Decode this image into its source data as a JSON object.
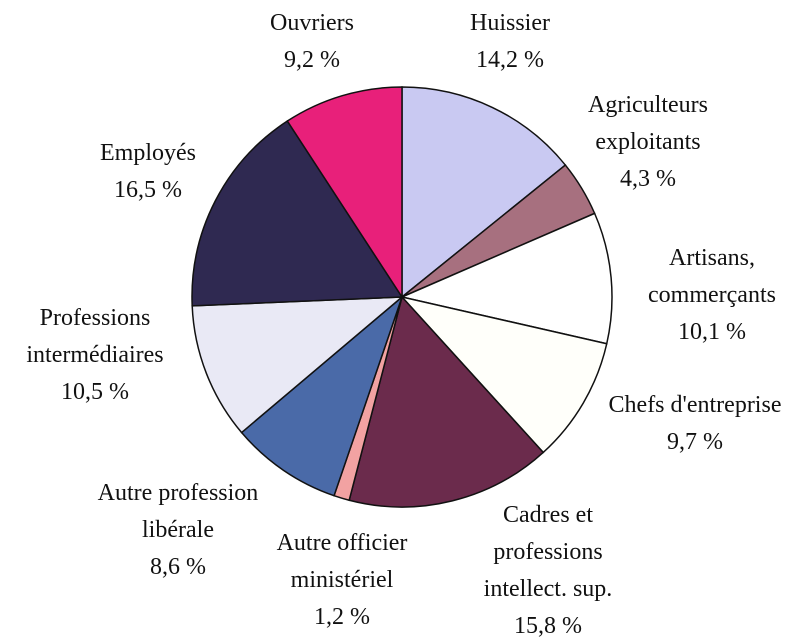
{
  "chart_data": {
    "type": "pie",
    "categories": [
      "Huissier",
      "Agriculteurs\nexploitants",
      "Artisans,\ncommerçants",
      "Chefs d'entreprise",
      "Cadres et\nprofessions\nintellect. sup.",
      "Autre officier\nministériel",
      "Autre profession\nlibérale",
      "Professions\nintermédiaires",
      "Employés",
      "Ouvriers"
    ],
    "values": [
      14.2,
      4.3,
      10.1,
      9.7,
      15.8,
      1.2,
      8.6,
      10.5,
      16.5,
      9.2
    ],
    "value_labels": [
      "14,2 %",
      "4,3 %",
      "10,1 %",
      "9,7 %",
      "15,8 %",
      "1,2 %",
      "8,6 %",
      "10,5 %",
      "16,5 %",
      "9,2 %"
    ],
    "colors": [
      "#c9c9f2",
      "#a7707f",
      "#ffffff",
      "#fffffa",
      "#6b2b4c",
      "#f2a2a2",
      "#4a6aa8",
      "#e9e9f5",
      "#2f2951",
      "#e8207a"
    ]
  }
}
